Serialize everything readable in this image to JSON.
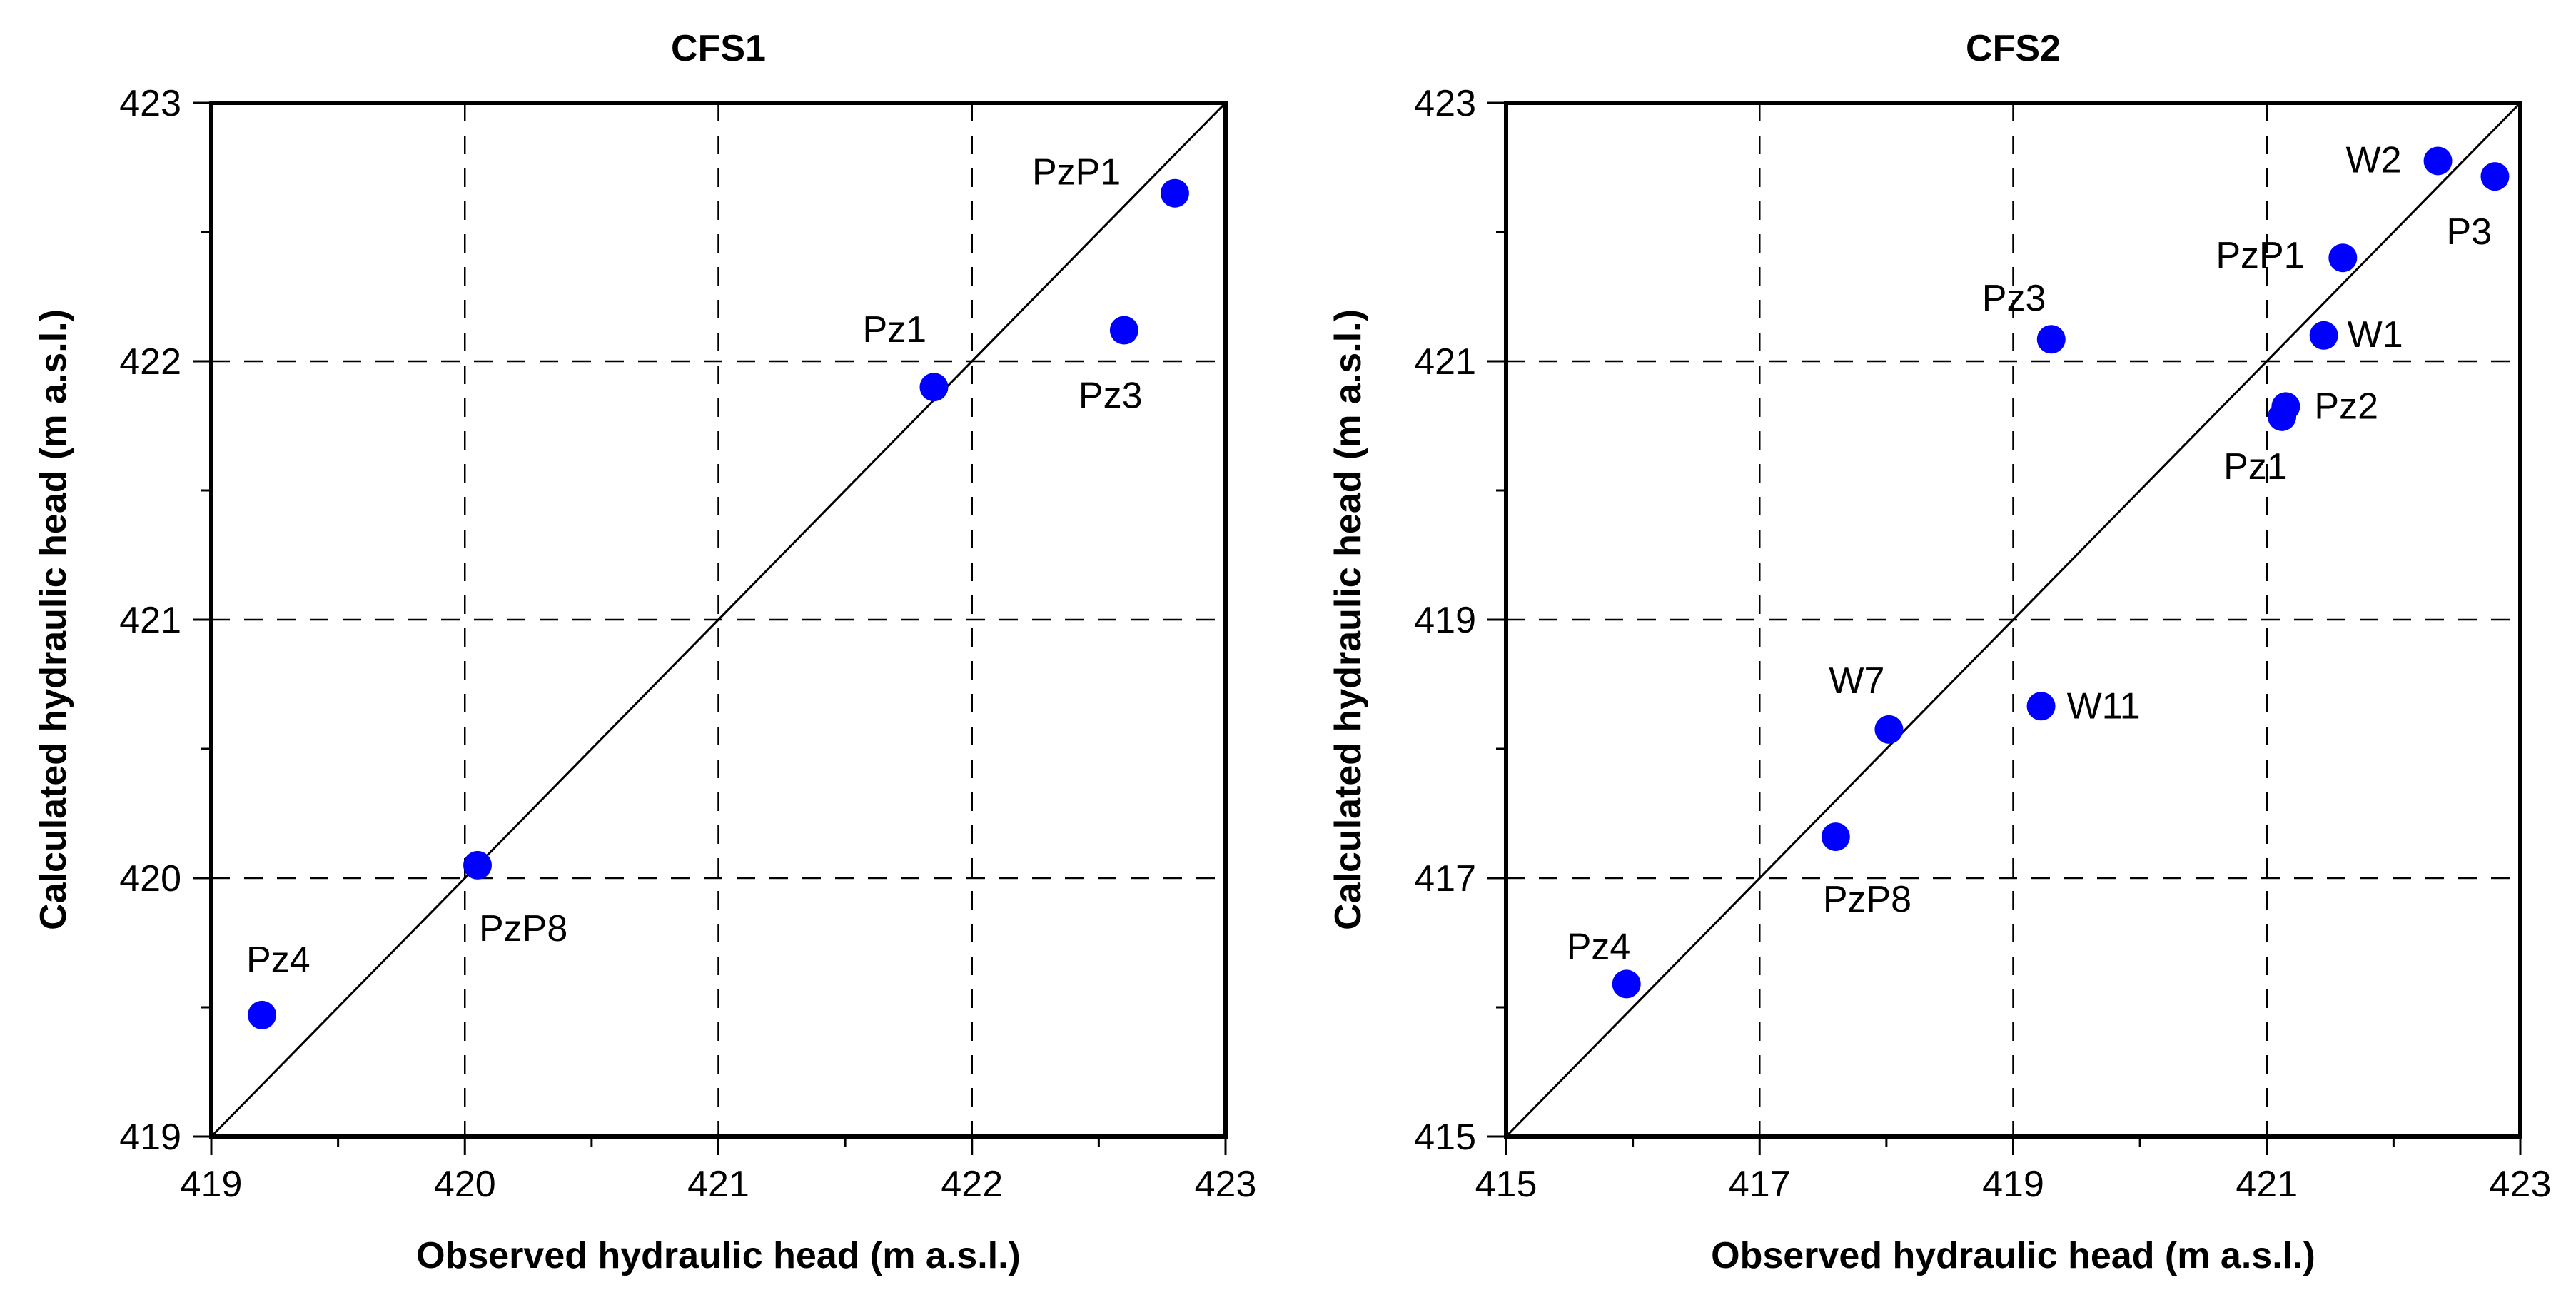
{
  "chart_data": [
    {
      "type": "scatter",
      "title": "CFS1",
      "xlabel": "Observed hydraulic head (m a.s.l.)",
      "ylabel": "Calculated hydraulic head (m a.s.l.)",
      "xlim": [
        419,
        423
      ],
      "ylim": [
        419,
        423
      ],
      "xticks": [
        419,
        420,
        421,
        422,
        423
      ],
      "yticks": [
        419,
        420,
        421,
        422,
        423
      ],
      "xtick_labels": [
        "419",
        "420",
        "421",
        "422",
        "423"
      ],
      "ytick_labels": [
        "419",
        "420",
        "421",
        "422",
        "423"
      ],
      "grid": "dashed",
      "reference_line": "1:1",
      "marker_color": "#0000ff",
      "points": [
        {
          "label": "PzP1",
          "x": 422.8,
          "y": 422.65
        },
        {
          "label": "Pz1",
          "x": 421.85,
          "y": 421.9
        },
        {
          "label": "Pz3",
          "x": 422.6,
          "y": 422.12
        },
        {
          "label": "PzP8",
          "x": 420.05,
          "y": 420.05
        },
        {
          "label": "Pz4",
          "x": 419.2,
          "y": 419.47
        }
      ]
    },
    {
      "type": "scatter",
      "title": "CFS2",
      "xlabel": "Observed hydraulic head (m a.s.l.)",
      "ylabel": "Calculated hydraulic head (m a.s.l.)",
      "xlim": [
        415,
        423
      ],
      "ylim": [
        415,
        423
      ],
      "xticks": [
        415,
        417,
        419,
        421,
        423
      ],
      "yticks": [
        415,
        417,
        419,
        421,
        423
      ],
      "xtick_labels": [
        "415",
        "417",
        "419",
        "421",
        "423"
      ],
      "ytick_labels": [
        "415",
        "417",
        "419",
        "421",
        "423"
      ],
      "grid": "dashed",
      "reference_line": "1:1",
      "marker_color": "#0000ff",
      "points": [
        {
          "label": "W2",
          "x": 422.35,
          "y": 422.55
        },
        {
          "label": "P3",
          "x": 422.8,
          "y": 422.43
        },
        {
          "label": "PzP1",
          "x": 421.6,
          "y": 421.8
        },
        {
          "label": "W1",
          "x": 421.45,
          "y": 421.2
        },
        {
          "label": "Pz3",
          "x": 419.3,
          "y": 421.17
        },
        {
          "label": "Pz2",
          "x": 421.15,
          "y": 420.65
        },
        {
          "label": "Pz1",
          "x": 421.12,
          "y": 420.57
        },
        {
          "label": "W7",
          "x": 418.02,
          "y": 418.15
        },
        {
          "label": "W11",
          "x": 419.22,
          "y": 418.33
        },
        {
          "label": "PzP8",
          "x": 417.6,
          "y": 417.32
        },
        {
          "label": "Pz4",
          "x": 415.95,
          "y": 416.18
        }
      ]
    }
  ]
}
